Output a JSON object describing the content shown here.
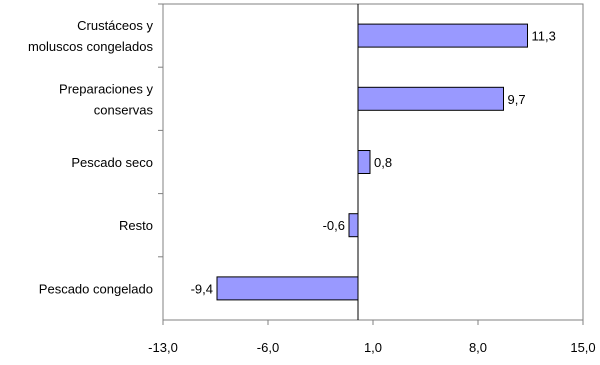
{
  "chart_data": {
    "type": "bar",
    "orientation": "horizontal",
    "title": "",
    "xlabel": "",
    "ylabel": "",
    "categories": [
      [
        "Crustáceos y",
        "moluscos congelados"
      ],
      [
        "Preparaciones y",
        "conservas"
      ],
      [
        "Pescado seco"
      ],
      [
        "Resto"
      ],
      [
        "Pescado congelado"
      ]
    ],
    "values": [
      11.3,
      9.7,
      0.8,
      -0.6,
      -9.4
    ],
    "value_labels": [
      "11,3",
      "9,7",
      "0,8",
      "-0,6",
      "-9,4"
    ],
    "xlim": [
      -13.0,
      15.0
    ],
    "ticks": [
      -13.0,
      -6.0,
      1.0,
      8.0,
      15.0
    ],
    "tick_labels": [
      "-13,0",
      "-6,0",
      "1,0",
      "8,0",
      "15,0"
    ],
    "baseline": 0,
    "grid": false,
    "legend": "none",
    "bar_color": "#9999ff",
    "bar_stroke": "#000000",
    "axis_color": "#808080"
  }
}
